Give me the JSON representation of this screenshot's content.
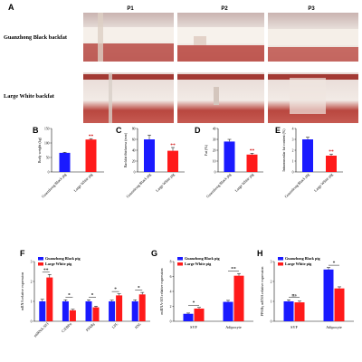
{
  "colors": {
    "gb": "#1a1aff",
    "lw": "#ff1a1a",
    "axis": "#111111",
    "err": "#000000"
  },
  "panel_a": {
    "letter": "A",
    "columns": [
      "P1",
      "P2",
      "P3"
    ],
    "rows": [
      "Guanzhong Black backfat",
      "Large White backfat"
    ]
  },
  "chart_data": [
    {
      "id": "B",
      "type": "bar",
      "ylabel": "Body weight (kg)",
      "ylim": [
        0,
        150
      ],
      "yticks": [
        0,
        50,
        100,
        150
      ],
      "categories": [
        "Guanzhong Black pig",
        "Large White pig"
      ],
      "values": [
        66,
        112
      ],
      "errors": [
        2,
        3
      ],
      "sig": [
        "",
        "**"
      ]
    },
    {
      "id": "C",
      "type": "bar",
      "ylabel": "Backfat thickness (mm)",
      "ylim": [
        0,
        80
      ],
      "yticks": [
        0,
        20,
        40,
        60,
        80
      ],
      "categories": [
        "Guanzhong Black pig",
        "Large White pig"
      ],
      "values": [
        60,
        39
      ],
      "errors": [
        8,
        6
      ],
      "sig": [
        "",
        "**"
      ]
    },
    {
      "id": "D",
      "type": "bar",
      "ylabel": "Fat (%)",
      "ylim": [
        0,
        40
      ],
      "yticks": [
        0,
        10,
        20,
        30,
        40
      ],
      "categories": [
        "Guanzhong Black pig",
        "Large White pig"
      ],
      "values": [
        28,
        16
      ],
      "errors": [
        2,
        1.2
      ],
      "sig": [
        "",
        "**"
      ]
    },
    {
      "id": "E",
      "type": "bar",
      "ylabel": "Intramuscular fat content (%)",
      "ylim": [
        0,
        4
      ],
      "yticks": [
        0,
        1,
        2,
        3,
        4
      ],
      "categories": [
        "Guanzhong Black pig",
        "Large White pig"
      ],
      "values": [
        3.0,
        1.5
      ],
      "errors": [
        0.2,
        0.15
      ],
      "sig": [
        "",
        "**"
      ]
    },
    {
      "id": "F",
      "type": "bar",
      "ylabel": "mRNA relative expression",
      "ylim": [
        0,
        3
      ],
      "yticks": [
        0,
        1,
        2,
        3
      ],
      "categories": [
        "miRNA-503",
        "C/EBPα",
        "PPARγ",
        "LPL",
        "HSL"
      ],
      "series": [
        {
          "name": "Guanzhong Black pig",
          "values": [
            1.0,
            1.0,
            1.0,
            1.0,
            1.0
          ],
          "errors": [
            0.1,
            0.08,
            0.08,
            0.06,
            0.08
          ]
        },
        {
          "name": "Large White pig",
          "values": [
            2.2,
            0.55,
            0.7,
            1.3,
            1.35
          ],
          "errors": [
            0.15,
            0.05,
            0.06,
            0.08,
            0.1
          ]
        }
      ],
      "sig": [
        "**",
        "*",
        "*",
        "*",
        "*"
      ]
    },
    {
      "id": "G",
      "type": "bar",
      "ylabel": "miRNA-503 relative expression",
      "ylim": [
        0,
        8
      ],
      "yticks": [
        0,
        2,
        4,
        6,
        8
      ],
      "categories": [
        "SVF",
        "Adipocyte"
      ],
      "series": [
        {
          "name": "Guanzhong Black pig",
          "values": [
            1.0,
            2.6
          ],
          "errors": [
            0.1,
            0.2
          ]
        },
        {
          "name": "Large White pig",
          "values": [
            1.7,
            6.1
          ],
          "errors": [
            0.15,
            0.3
          ]
        }
      ],
      "sig": [
        "*",
        "**"
      ]
    },
    {
      "id": "H",
      "type": "bar",
      "ylabel": "PPARγ mRNA relative expression",
      "ylim": [
        0,
        3
      ],
      "yticks": [
        0,
        1,
        2,
        3
      ],
      "categories": [
        "SVF",
        "Adipocyte"
      ],
      "series": [
        {
          "name": "Guanzhong Black pig",
          "values": [
            1.0,
            2.6
          ],
          "errors": [
            0.08,
            0.1
          ]
        },
        {
          "name": "Large White pig",
          "values": [
            0.95,
            1.65
          ],
          "errors": [
            0.06,
            0.08
          ]
        }
      ],
      "sig": [
        "ns",
        "*"
      ]
    }
  ]
}
